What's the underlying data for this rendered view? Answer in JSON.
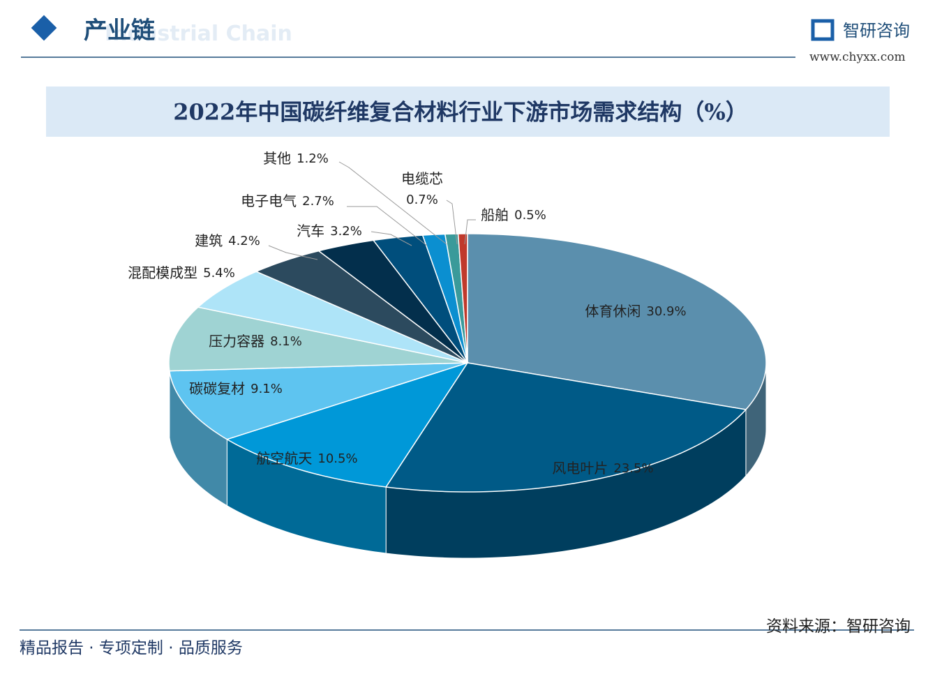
{
  "header": {
    "section": "产业链",
    "section_en": "Industrial Chain",
    "brand": "智研咨询",
    "site": "www.chyxx.com"
  },
  "chart_data": {
    "type": "pie",
    "title": "2022年中国碳纤维复合材料行业下游市场需求结构（%）",
    "categories": [
      "体育休闲",
      "风电叶片",
      "航空航天",
      "碳碳复材",
      "压力容器",
      "混配模成型",
      "建筑",
      "汽车",
      "电子电气",
      "其他",
      "电缆芯",
      "船舶"
    ],
    "values": [
      30.9,
      23.5,
      10.5,
      9.1,
      8.1,
      5.4,
      4.2,
      3.2,
      2.7,
      1.2,
      0.7,
      0.5
    ],
    "value_labels": [
      "30.9%",
      "23.5%",
      "10.5%",
      "9.1%",
      "8.1%",
      "5.4%",
      "4.2%",
      "3.2%",
      "2.7%",
      "1.2%",
      "0.7%",
      "0.5%"
    ],
    "colors": [
      "#5b8fad",
      "#005a87",
      "#0098d8",
      "#5ec4f0",
      "#9fd3d3",
      "#aee4f8",
      "#2c4a5e",
      "#032f4c",
      "#004e7c",
      "#0b8fd0",
      "#3a9a9a",
      "#c0392b"
    ]
  },
  "footer": {
    "slogan": "精品报告 · 专项定制 · 品质服务",
    "source": "资料来源：智研咨询"
  }
}
